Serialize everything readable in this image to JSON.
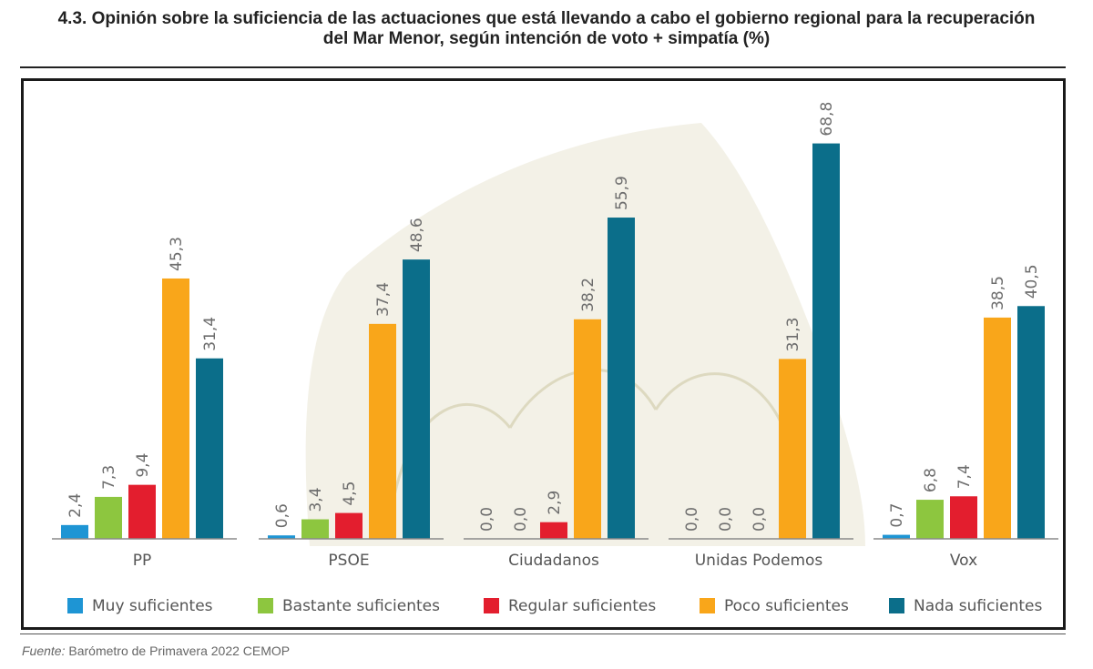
{
  "header": {
    "title_line1": "4.3. Opinión sobre la suficiencia de las actuaciones que está llevando a cabo el gobierno regional para la recuperación",
    "title_line2": "del Mar Menor, según intención de voto + simpatía (%)"
  },
  "footer": {
    "source_label": "Fuente:",
    "source_text": " Barómetro de Primavera 2022 CEMOP"
  },
  "colors": {
    "Muy suficientes": "#1e95d4",
    "Bastante suficientes": "#8dc63f",
    "Regular suficientes": "#e31e2e",
    "Poco suficientes": "#f9a61a",
    "Nada suficientes": "#0b6e8a"
  },
  "chart_data": {
    "type": "bar",
    "title": "Opinión sobre la suficiencia de las actuaciones que está llevando a cabo el gobierno regional para la recuperación del Mar Menor, según intención de voto + simpatía (%)",
    "categories": [
      "PP",
      "PSOE",
      "Ciudadanos",
      "Unidas Podemos",
      "Vox"
    ],
    "series": [
      {
        "name": "Muy suficientes",
        "values": [
          2.4,
          0.6,
          0.0,
          0.0,
          0.7
        ],
        "labels": [
          "2,4",
          "0,6",
          "0,0",
          "0,0",
          "0,7"
        ]
      },
      {
        "name": "Bastante suficientes",
        "values": [
          7.3,
          3.4,
          0.0,
          0.0,
          6.8
        ],
        "labels": [
          "7,3",
          "3,4",
          "0,0",
          "0,0",
          "6,8"
        ]
      },
      {
        "name": "Regular suficientes",
        "values": [
          9.4,
          4.5,
          2.9,
          0.0,
          7.4
        ],
        "labels": [
          "9,4",
          "4,5",
          "2,9",
          "0,0",
          "7,4"
        ]
      },
      {
        "name": "Poco suficientes",
        "values": [
          45.3,
          37.4,
          38.2,
          31.3,
          38.5
        ],
        "labels": [
          "45,3",
          "37,4",
          "38,2",
          "31,3",
          "38,5"
        ]
      },
      {
        "name": "Nada suficientes",
        "values": [
          31.4,
          48.6,
          55.9,
          68.8,
          40.5
        ],
        "labels": [
          "31,4",
          "48,6",
          "55,9",
          "68,8",
          "40,5"
        ]
      }
    ],
    "xlabel": "",
    "ylabel": "%",
    "ylim": [
      0,
      70
    ],
    "grid": false,
    "legend_position": "bottom"
  }
}
